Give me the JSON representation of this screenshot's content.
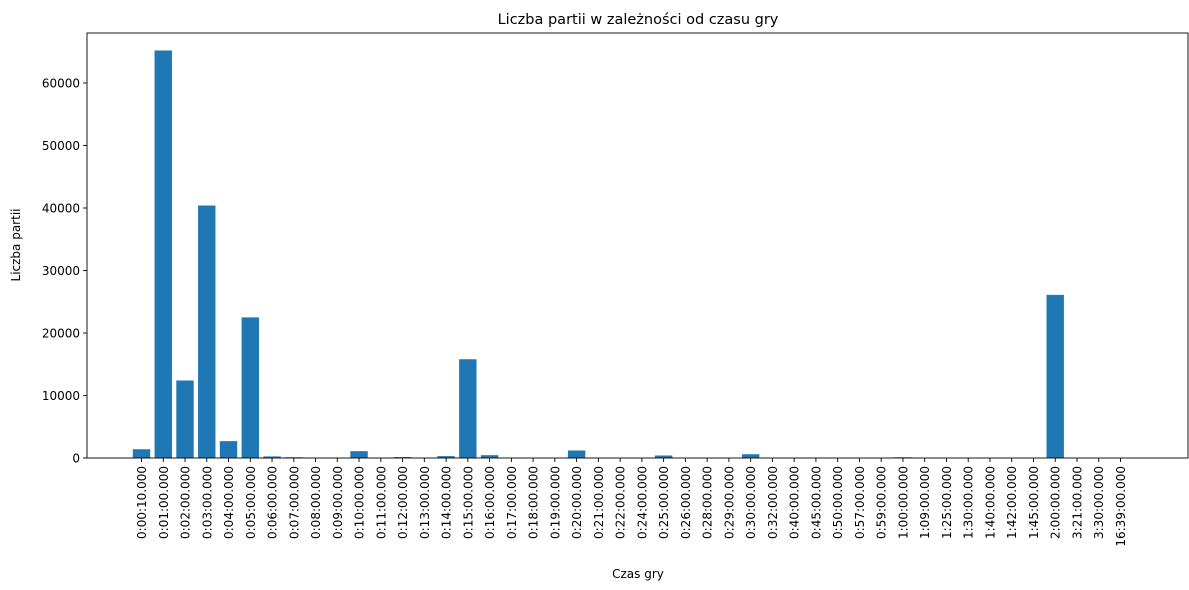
{
  "chart_data": {
    "type": "bar",
    "title": "Liczba partii w zależności od czasu gry",
    "xlabel": "Czas gry",
    "ylabel": "Liczba partii",
    "ylim": [
      0,
      68000
    ],
    "yticks": [
      0,
      10000,
      20000,
      30000,
      40000,
      50000,
      60000
    ],
    "grid": false,
    "bar_color": "#1f77b4",
    "categories": [
      "0:00:10.000",
      "0:01:00.000",
      "0:02:00.000",
      "0:03:00.000",
      "0:04:00.000",
      "0:05:00.000",
      "0:06:00.000",
      "0:07:00.000",
      "0:08:00.000",
      "0:09:00.000",
      "0:10:00.000",
      "0:11:00.000",
      "0:12:00.000",
      "0:13:00.000",
      "0:14:00.000",
      "0:15:00.000",
      "0:16:00.000",
      "0:17:00.000",
      "0:18:00.000",
      "0:19:00.000",
      "0:20:00.000",
      "0:21:00.000",
      "0:22:00.000",
      "0:24:00.000",
      "0:25:00.000",
      "0:26:00.000",
      "0:28:00.000",
      "0:29:00.000",
      "0:30:00.000",
      "0:32:00.000",
      "0:40:00.000",
      "0:45:00.000",
      "0:50:00.000",
      "0:57:00.000",
      "0:59:00.000",
      "1:00:00.000",
      "1:09:00.000",
      "1:25:00.000",
      "1:30:00.000",
      "1:40:00.000",
      "1:42:00.000",
      "1:45:00.000",
      "2:00:00.000",
      "3:21:00.000",
      "3:30:00.000",
      "16:39:00.000"
    ],
    "values": [
      1400,
      65200,
      12400,
      40400,
      2700,
      22500,
      250,
      120,
      30,
      40,
      1100,
      30,
      150,
      20,
      300,
      15800,
      450,
      30,
      20,
      20,
      1200,
      20,
      30,
      20,
      400,
      20,
      20,
      20,
      600,
      20,
      20,
      20,
      20,
      20,
      20,
      120,
      20,
      20,
      20,
      20,
      20,
      20,
      26100,
      20,
      20,
      20
    ]
  }
}
